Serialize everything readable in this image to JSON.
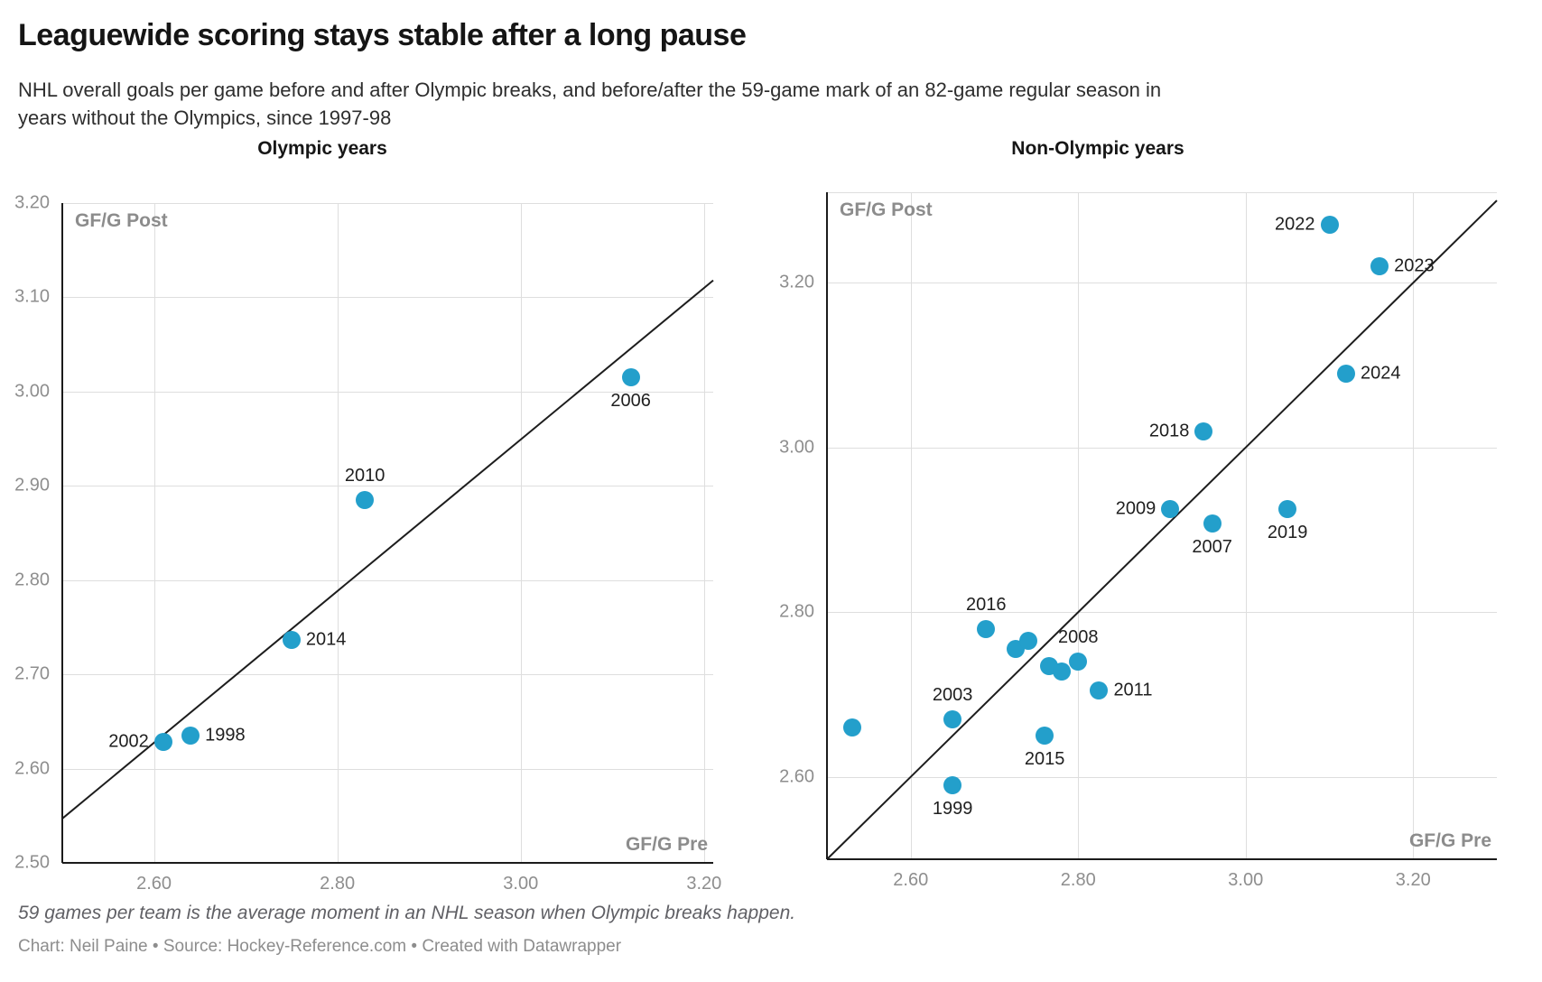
{
  "header": {
    "title": "Leaguewide scoring stays stable after a long pause",
    "description": "NHL overall goals per game before and after Olympic breaks, and before/after the 59-game mark of an 82-game regular season in years without the Olympics, since 1997-98"
  },
  "footer": {
    "note": "59 games per team is the average moment in an NHL season when Olympic breaks happen.",
    "byline": "Chart: Neil Paine • Source: Hockey-Reference.com • Created with Datawrapper"
  },
  "accent_color": "#239fcb",
  "chart_data": [
    {
      "type": "scatter",
      "title": "Olympic years",
      "xlabel": "GF/G Pre",
      "ylabel": "GF/G Post",
      "xlim": [
        2.5,
        3.21
      ],
      "ylim": [
        2.5,
        3.2
      ],
      "grid": true,
      "x_ticks": [
        "2.60",
        "2.80",
        "3.00",
        "3.20"
      ],
      "y_ticks": [
        "3.20",
        "3.10",
        "3.00",
        "2.90",
        "2.80",
        "2.70",
        "2.60",
        "2.50"
      ],
      "reference_line": {
        "kind": "trend",
        "x1": 2.5,
        "y1": 2.547,
        "x2": 3.21,
        "y2": 3.118
      },
      "points": [
        {
          "label": "1998",
          "x": 2.64,
          "y": 2.635,
          "label_pos": "right"
        },
        {
          "label": "2002",
          "x": 2.61,
          "y": 2.628,
          "label_pos": "left"
        },
        {
          "label": "2006",
          "x": 3.12,
          "y": 3.015,
          "label_pos": "below"
        },
        {
          "label": "2010",
          "x": 2.83,
          "y": 2.885,
          "label_pos": "above"
        },
        {
          "label": "2014",
          "x": 2.75,
          "y": 2.737,
          "label_pos": "right"
        }
      ]
    },
    {
      "type": "scatter",
      "title": "Non-Olympic years",
      "xlabel": "GF/G Pre",
      "ylabel": "GF/G Post",
      "xlim": [
        2.5,
        3.3
      ],
      "ylim": [
        2.5,
        3.31
      ],
      "grid": true,
      "x_ticks": [
        "2.60",
        "2.80",
        "3.00",
        "3.20"
      ],
      "y_ticks": [
        "3.20",
        "3.00",
        "2.80",
        "2.60"
      ],
      "reference_line": {
        "kind": "identity",
        "x1": 2.5,
        "y1": 2.5,
        "x2": 3.3,
        "y2": 3.3
      },
      "points": [
        {
          "label": "1999",
          "x": 2.65,
          "y": 2.59,
          "label_pos": "below"
        },
        {
          "label": "2003",
          "x": 2.65,
          "y": 2.67,
          "label_pos": "above"
        },
        {
          "label": "",
          "x": 2.53,
          "y": 2.66,
          "label_pos": ""
        },
        {
          "label": "2015",
          "x": 2.76,
          "y": 2.65,
          "label_pos": "below"
        },
        {
          "label": "2016",
          "x": 2.69,
          "y": 2.78,
          "label_pos": "above"
        },
        {
          "label": "",
          "x": 2.725,
          "y": 2.755,
          "label_pos": ""
        },
        {
          "label": "",
          "x": 2.74,
          "y": 2.765,
          "label_pos": ""
        },
        {
          "label": "",
          "x": 2.765,
          "y": 2.735,
          "label_pos": ""
        },
        {
          "label": "",
          "x": 2.78,
          "y": 2.728,
          "label_pos": ""
        },
        {
          "label": "2008",
          "x": 2.8,
          "y": 2.74,
          "label_pos": "above"
        },
        {
          "label": "2011",
          "x": 2.825,
          "y": 2.705,
          "label_pos": "right"
        },
        {
          "label": "2009",
          "x": 2.91,
          "y": 2.925,
          "label_pos": "left"
        },
        {
          "label": "2007",
          "x": 2.96,
          "y": 2.908,
          "label_pos": "below"
        },
        {
          "label": "2019",
          "x": 3.05,
          "y": 2.925,
          "label_pos": "below"
        },
        {
          "label": "2018",
          "x": 2.95,
          "y": 3.02,
          "label_pos": "left"
        },
        {
          "label": "2024",
          "x": 3.12,
          "y": 3.09,
          "label_pos": "right"
        },
        {
          "label": "2023",
          "x": 3.16,
          "y": 3.22,
          "label_pos": "right"
        },
        {
          "label": "2022",
          "x": 3.1,
          "y": 3.27,
          "label_pos": "left"
        }
      ]
    }
  ]
}
